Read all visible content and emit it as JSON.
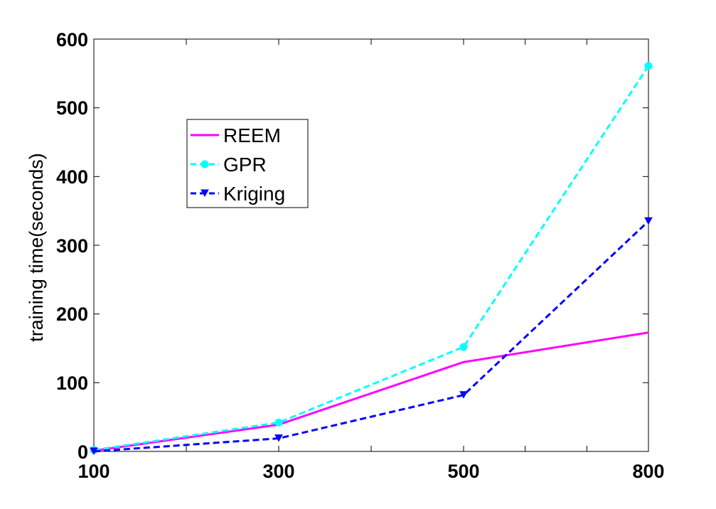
{
  "chart_data": {
    "type": "line",
    "title": "",
    "xlabel": "",
    "ylabel": "training time(seconds)",
    "x": [
      100,
      300,
      500,
      800
    ],
    "x_ticks": [
      "100",
      "300",
      "500",
      "800"
    ],
    "x_minor_ticks": [
      200,
      400,
      600,
      700
    ],
    "y_ticks": [
      "0",
      "100",
      "200",
      "300",
      "400",
      "500",
      "600"
    ],
    "xlim": [
      100,
      800
    ],
    "ylim": [
      0,
      600
    ],
    "x_axis_scale": "piecewise (categorical spacing at 100, 300, 500, 800)",
    "grid": false,
    "legend_position": "upper-left",
    "series": [
      {
        "name": "REEM",
        "values": [
          1,
          39,
          130,
          173
        ],
        "color": "#ff00ff",
        "line_style": "solid",
        "marker": "none"
      },
      {
        "name": "GPR",
        "values": [
          2,
          42,
          152,
          561
        ],
        "color": "#00ffff",
        "line_style": "dashed",
        "marker": "circle"
      },
      {
        "name": "Kriging",
        "values": [
          0,
          19,
          82,
          335
        ],
        "color": "#0000ff",
        "line_style": "dashed",
        "marker": "triangle-down"
      }
    ]
  }
}
